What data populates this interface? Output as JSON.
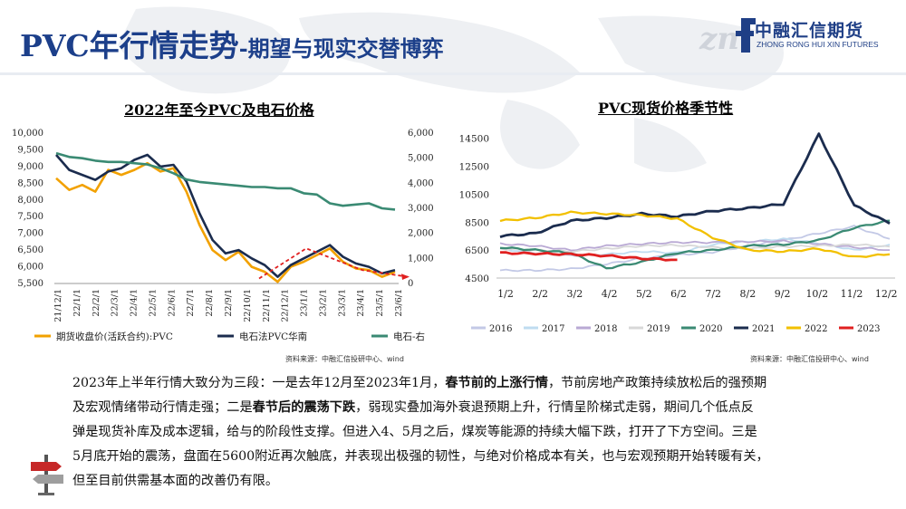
{
  "header": {
    "title": "PVC年行情走势",
    "subtitle": "-期望与现实交替博弈",
    "logo_cn": "中融汇信期货",
    "logo_en": "ZHONG RONG HUI XIN FUTURES"
  },
  "chart_data": [
    {
      "type": "line",
      "title": "2022年至今PVC及电石价格",
      "left_axis": {
        "ticks": [
          "10,000",
          "9,500",
          "9,000",
          "8,500",
          "8,000",
          "7,500",
          "7,000",
          "6,500",
          "6,000",
          "5,500"
        ],
        "ylim": [
          5500,
          10000
        ]
      },
      "right_axis": {
        "ticks": [
          "6,000",
          "5,000",
          "4,000",
          "3,000",
          "2,000",
          "1,000",
          "0"
        ],
        "ylim": [
          0,
          6000
        ]
      },
      "x_ticks": [
        "21/12/1",
        "22/1/1",
        "22/2/1",
        "22/3/1",
        "22/4/1",
        "22/5/1",
        "22/6/1",
        "22/7/1",
        "22/8/1",
        "22/9/1",
        "22/10/1",
        "22/11/1",
        "22/12/1",
        "23/1/1",
        "23/2/1",
        "23/3/1",
        "23/4/1",
        "23/5/1",
        "23/6/1"
      ],
      "series": [
        {
          "name": "期货收盘价(活跃合约):PVC",
          "axis": "left",
          "color": "#f2a100",
          "values": [
            8650,
            8300,
            8450,
            8250,
            8900,
            8750,
            8900,
            9100,
            8850,
            8950,
            8250,
            7250,
            6500,
            6200,
            6450,
            6000,
            5850,
            5550,
            6000,
            6150,
            6350,
            6550,
            6150,
            5950,
            5900,
            5700,
            5850
          ]
        },
        {
          "name": "电石法PVC华南",
          "axis": "left",
          "color": "#1b2c4e",
          "values": [
            9350,
            8900,
            8750,
            8600,
            8850,
            8950,
            9200,
            9350,
            9000,
            9050,
            8550,
            7600,
            6800,
            6400,
            6500,
            6250,
            6050,
            5700,
            6050,
            6250,
            6450,
            6650,
            6300,
            6100,
            6000,
            5800,
            5900
          ]
        },
        {
          "name": "电石-右",
          "axis": "right",
          "color": "#3a8a73",
          "values": [
            5200,
            5050,
            5000,
            4900,
            4850,
            4850,
            4800,
            4750,
            4600,
            4400,
            4150,
            4050,
            4000,
            3950,
            3900,
            3850,
            3850,
            3800,
            3800,
            3600,
            3550,
            3200,
            3100,
            3150,
            3200,
            3000,
            2950
          ]
        }
      ],
      "legend": [
        "期货收盘价(活跃合约):PVC",
        "电石法PVC华南",
        "电石-右"
      ],
      "legend_position": "bottom",
      "source": "资料来源：中融汇信投研中心、wind"
    },
    {
      "type": "line",
      "title": "PVC现货价格季节性",
      "y_ticks": [
        "14500",
        "12500",
        "10500",
        "8500",
        "6500",
        "4500"
      ],
      "ylim": [
        4500,
        15000
      ],
      "x_ticks": [
        "1/2",
        "2/2",
        "3/2",
        "4/2",
        "5/2",
        "6/2",
        "7/2",
        "8/2",
        "9/2",
        "10/2",
        "11/2",
        "12/2"
      ],
      "series": [
        {
          "name": "2016",
          "color": "#c3c9e6",
          "values": [
            5050,
            5050,
            5150,
            5500,
            5900,
            6150,
            6350,
            6800,
            7200,
            7700,
            8200,
            7300
          ]
        },
        {
          "name": "2017",
          "color": "#bfdcf0",
          "values": [
            6600,
            6300,
            6100,
            6200,
            6400,
            6300,
            6900,
            7100,
            7300,
            7000,
            6500,
            6900
          ]
        },
        {
          "name": "2018",
          "color": "#b9a9d4",
          "values": [
            6950,
            6800,
            6500,
            6800,
            6950,
            7050,
            7050,
            7100,
            7150,
            6950,
            6700,
            6500
          ]
        },
        {
          "name": "2019",
          "color": "#d8d8d8",
          "values": [
            6600,
            6500,
            6400,
            6600,
            6800,
            6850,
            6700,
            6600,
            6750,
            6800,
            6900,
            6750
          ]
        },
        {
          "name": "2020",
          "color": "#3a8a73",
          "values": [
            6700,
            6500,
            6300,
            5200,
            5650,
            6300,
            6500,
            6800,
            6900,
            7200,
            8100,
            8600
          ]
        },
        {
          "name": "2021",
          "color": "#1b2c4e",
          "values": [
            7500,
            7700,
            8600,
            8800,
            9100,
            8900,
            9300,
            9500,
            9800,
            14800,
            9700,
            8400
          ]
        },
        {
          "name": "2022",
          "color": "#f2c000",
          "values": [
            8600,
            8800,
            9200,
            9100,
            9000,
            8750,
            7400,
            6500,
            6400,
            6600,
            6000,
            6200
          ]
        },
        {
          "name": "2023",
          "color": "#e02020",
          "values": [
            6300,
            6250,
            6200,
            6100,
            5900,
            5800
          ]
        }
      ],
      "legend": [
        "2016",
        "2017",
        "2018",
        "2019",
        "2020",
        "2021",
        "2022",
        "2023"
      ],
      "legend_position": "bottom",
      "source": "资料来源：中融汇信投研中心、wind"
    }
  ],
  "paragraph": {
    "l1a": "2023年上半年行情大致分为三段：一是去年12月至2023年1月，",
    "l1b": "春节前的上涨行情",
    "l1c": "，节前房地产政策持续放松后的强预期",
    "l2a": "及宏观情绪带动行情走强；二是",
    "l2b": "春节后的震荡下跌",
    "l2c": "，弱现实叠加海外衰退预期上升，行情呈阶梯式走弱，期间几个低点反",
    "l3": "弹是现货补库及成本逻辑，给与的阶段性支撑。但进入4、5月之后，煤炭等能源的持续大幅下跌，打开了下方空间。三是",
    "l4": "5月底开始的震荡，盘面在5600附近再次触底，并表现出极强的韧性，与绝对价格成本有关，也与宏观预期开始转暖有关，",
    "l5": "但至目前供需基本面的改善仍有限。"
  }
}
